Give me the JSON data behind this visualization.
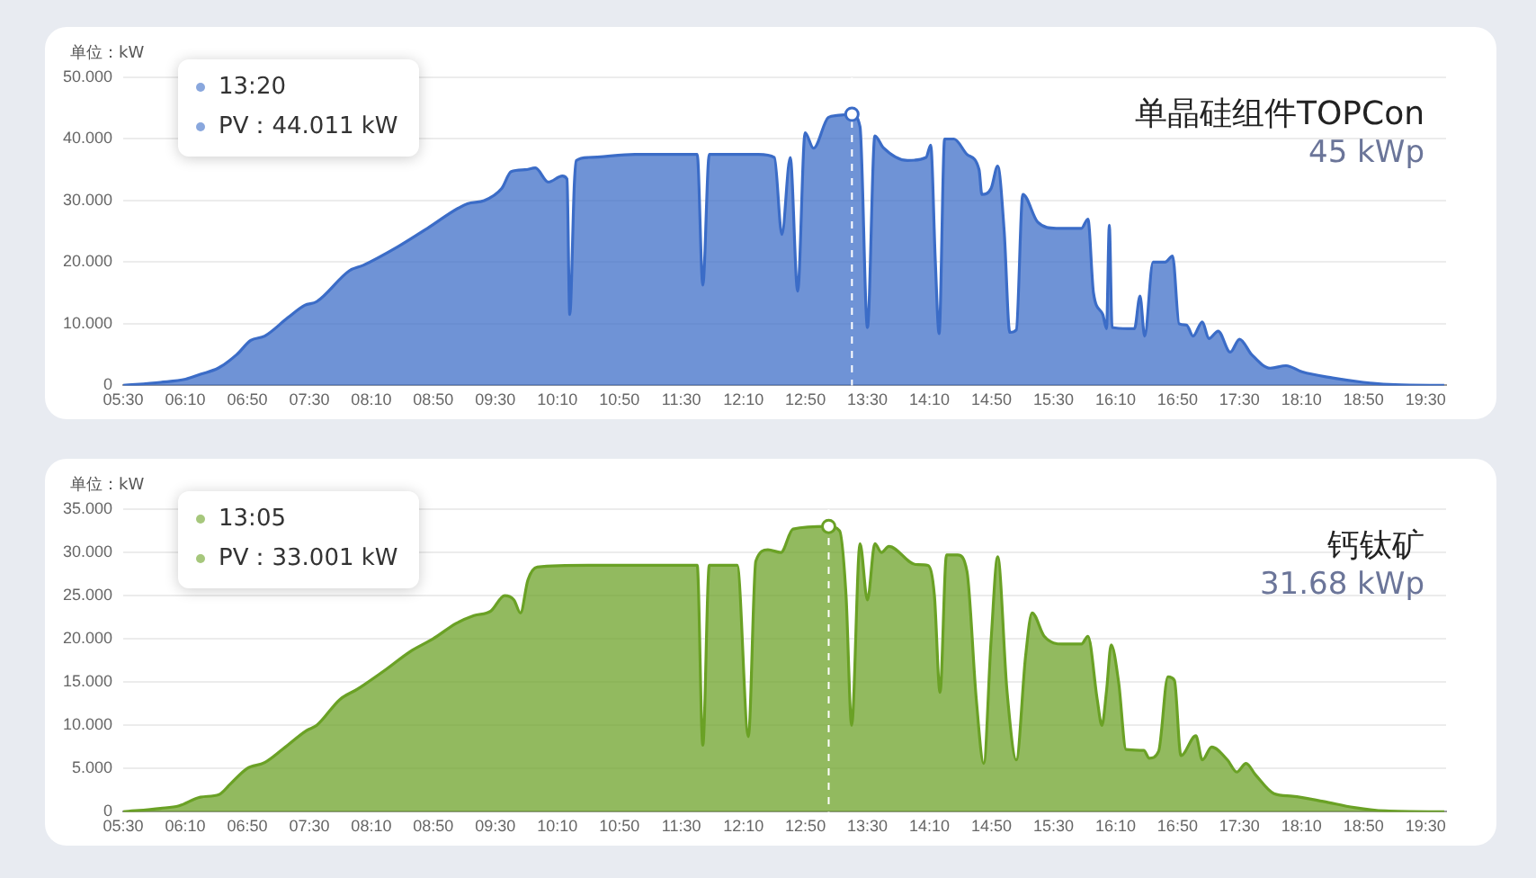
{
  "chart_data": [
    {
      "type": "area",
      "title": "单晶硅组件TOPCon",
      "subtitle": "45 kWp",
      "ylabel": "单位：kW",
      "x": [
        5.5,
        5.9,
        6.17,
        6.33,
        6.52,
        6.72,
        6.87,
        7.02,
        7.27,
        7.45,
        7.58,
        7.93,
        8.08,
        8.45,
        8.77,
        9.2,
        9.38,
        9.57,
        9.67,
        9.82,
        9.93,
        10.07,
        10.22,
        10.27,
        10.3,
        10.35,
        10.37,
        10.5,
        11,
        11.67,
        11.73,
        11.8,
        12.33,
        12.5,
        12.58,
        12.67,
        12.75,
        12.83,
        12.92,
        13.08,
        13.17,
        13.3333,
        13.42,
        13.5,
        13.58,
        13.67,
        13.93,
        14.13,
        14.18,
        14.23,
        14.27,
        14.33,
        14.43,
        14.57,
        14.7,
        14.73,
        14.83,
        14.9,
        14.97,
        15.03,
        15.1,
        15.17,
        15.33,
        15.53,
        15.8,
        15.87,
        15.93,
        16.03,
        16.07,
        16.1,
        16.13,
        16.3,
        16.37,
        16.43,
        16.48,
        16.57,
        16.7,
        16.78,
        16.85,
        16.93,
        17,
        17.1,
        17.17,
        17.27,
        17.4,
        17.5,
        17.63,
        17.83,
        18,
        18.17,
        18.5,
        18.83,
        19.17,
        19.7
      ],
      "series": [
        {
          "color": "#3b6cc7",
          "values": [
            0,
            0.5,
            1,
            1.8,
            2.8,
            5,
            7.3,
            8,
            11,
            13,
            13.6,
            18.6,
            19.5,
            22.5,
            25.5,
            29.5,
            30,
            32,
            34.7,
            35,
            35.3,
            33,
            34,
            33.5,
            11.5,
            33,
            36.5,
            37,
            37.5,
            37.5,
            16.3,
            37.5,
            37.5,
            37,
            24.5,
            37,
            15.3,
            41,
            38.5,
            43.5,
            43.8,
            44.011,
            42,
            9.4,
            40.5,
            38.6,
            36.5,
            37,
            39,
            20,
            8.4,
            40,
            40,
            37.5,
            35,
            31,
            32,
            35.6,
            25,
            8.6,
            9,
            31,
            26.5,
            25.5,
            25.5,
            27,
            15,
            11.5,
            9.2,
            26,
            9.4,
            9.2,
            9.2,
            14.5,
            8,
            20,
            20,
            21,
            10,
            9.8,
            8,
            10.3,
            7.6,
            8.8,
            5.4,
            7.5,
            5,
            2.8,
            3.2,
            2.2,
            1.2,
            0.5,
            0.1,
            0
          ]
        }
      ],
      "xlim": [
        5.5,
        19.72
      ],
      "xticks": [
        {
          "value": 5.5,
          "label": "05:30"
        },
        {
          "value": 6.1667,
          "label": "06:10"
        },
        {
          "value": 6.8333,
          "label": "06:50"
        },
        {
          "value": 7.5,
          "label": "07:30"
        },
        {
          "value": 8.1667,
          "label": "08:10"
        },
        {
          "value": 8.8333,
          "label": "08:50"
        },
        {
          "value": 9.5,
          "label": "09:30"
        },
        {
          "value": 10.1667,
          "label": "10:10"
        },
        {
          "value": 10.8333,
          "label": "10:50"
        },
        {
          "value": 11.5,
          "label": "11:30"
        },
        {
          "value": 12.1667,
          "label": "12:10"
        },
        {
          "value": 12.8333,
          "label": "12:50"
        },
        {
          "value": 13.5,
          "label": "13:30"
        },
        {
          "value": 14.1667,
          "label": "14:10"
        },
        {
          "value": 14.8333,
          "label": "14:50"
        },
        {
          "value": 15.5,
          "label": "15:30"
        },
        {
          "value": 16.1667,
          "label": "16:10"
        },
        {
          "value": 16.8333,
          "label": "16:50"
        },
        {
          "value": 17.5,
          "label": "17:30"
        },
        {
          "value": 18.1667,
          "label": "18:10"
        },
        {
          "value": 18.8333,
          "label": "18:50"
        },
        {
          "value": 19.5,
          "label": "19:30"
        }
      ],
      "ylim": [
        0,
        50
      ],
      "yticks": [
        0,
        {
          "value": 10,
          "label": "10.000"
        },
        {
          "value": 20,
          "label": "20.000"
        },
        {
          "value": 30,
          "label": "30.000"
        },
        {
          "value": 40,
          "label": "40.000"
        },
        {
          "value": 50,
          "label": "50.000"
        }
      ],
      "ref_lines": [
        {
          "axis": "x",
          "value": 13.3333,
          "color": "#ffffff",
          "line_style": "dashed"
        }
      ],
      "annotations": [
        "13:20",
        "PV：44.011 kW"
      ],
      "grid": "y",
      "legend": false,
      "marker": "none",
      "line_style": "solid"
    },
    {
      "type": "area",
      "title": "钙钛矿",
      "subtitle": "31.68 kWp",
      "ylabel": "单位：kW",
      "x": [
        5.5,
        5.9,
        6.1,
        6.33,
        6.53,
        6.65,
        6.83,
        7.02,
        7.22,
        7.47,
        7.58,
        7.83,
        8.02,
        8.33,
        8.58,
        8.83,
        9.08,
        9.27,
        9.45,
        9.6,
        9.7,
        9.77,
        9.85,
        9.95,
        10.5,
        11.5,
        11.67,
        11.73,
        11.8,
        12.1,
        12.22,
        12.3,
        12.43,
        12.57,
        12.7,
        13.0833,
        13.2,
        13.27,
        13.33,
        13.42,
        13.5,
        13.58,
        13.65,
        13.73,
        14.02,
        14.15,
        14.22,
        14.28,
        14.35,
        14.47,
        14.57,
        14.67,
        14.75,
        14.83,
        14.9,
        15,
        15.1,
        15.2,
        15.27,
        15.4,
        15.6,
        15.8,
        15.87,
        15.97,
        16.02,
        16.07,
        16.12,
        16.2,
        16.28,
        16.47,
        16.53,
        16.63,
        16.73,
        16.8,
        16.87,
        17.03,
        17.1,
        17.2,
        17.37,
        17.47,
        17.57,
        17.67,
        17.87,
        18.07,
        18.4,
        18.73,
        19.07,
        19.7
      ],
      "series": [
        {
          "color": "#6aa125",
          "values": [
            0,
            0.4,
            0.7,
            1.7,
            2,
            3.2,
            5,
            5.7,
            7.3,
            9.4,
            10,
            13,
            14.2,
            16.5,
            18.5,
            20,
            21.8,
            22.7,
            23.2,
            25,
            24.5,
            23,
            26.8,
            28.3,
            28.5,
            28.5,
            28.5,
            7.7,
            28.5,
            28.5,
            8.7,
            29,
            30.3,
            30,
            32.7,
            33.001,
            32.5,
            25,
            10,
            31,
            24.5,
            31,
            30,
            30.7,
            28.6,
            28.5,
            25,
            13.8,
            29.7,
            29.7,
            27.8,
            13,
            5.6,
            20,
            29.5,
            14,
            6,
            18,
            23,
            20.3,
            19.4,
            19.4,
            20.3,
            13,
            10,
            14,
            19.3,
            15,
            7.2,
            7.1,
            6.2,
            7,
            15.6,
            15.2,
            6.5,
            8.8,
            6,
            7.5,
            6,
            4.6,
            5.6,
            4.3,
            2.1,
            1.8,
            1.2,
            0.5,
            0.1,
            0
          ]
        }
      ],
      "xlim": [
        5.5,
        19.72
      ],
      "xticks": [
        {
          "value": 5.5,
          "label": "05:30"
        },
        {
          "value": 6.1667,
          "label": "06:10"
        },
        {
          "value": 6.8333,
          "label": "06:50"
        },
        {
          "value": 7.5,
          "label": "07:30"
        },
        {
          "value": 8.1667,
          "label": "08:10"
        },
        {
          "value": 8.8333,
          "label": "08:50"
        },
        {
          "value": 9.5,
          "label": "09:30"
        },
        {
          "value": 10.1667,
          "label": "10:10"
        },
        {
          "value": 10.8333,
          "label": "10:50"
        },
        {
          "value": 11.5,
          "label": "11:30"
        },
        {
          "value": 12.1667,
          "label": "12:10"
        },
        {
          "value": 12.8333,
          "label": "12:50"
        },
        {
          "value": 13.5,
          "label": "13:30"
        },
        {
          "value": 14.1667,
          "label": "14:10"
        },
        {
          "value": 14.8333,
          "label": "14:50"
        },
        {
          "value": 15.5,
          "label": "15:30"
        },
        {
          "value": 16.1667,
          "label": "16:10"
        },
        {
          "value": 16.8333,
          "label": "16:50"
        },
        {
          "value": 17.5,
          "label": "17:30"
        },
        {
          "value": 18.1667,
          "label": "18:10"
        },
        {
          "value": 18.8333,
          "label": "18:50"
        },
        {
          "value": 19.5,
          "label": "19:30"
        }
      ],
      "ylim": [
        0,
        35
      ],
      "yticks": [
        0,
        {
          "value": 5,
          "label": "5.000"
        },
        {
          "value": 10,
          "label": "10.000"
        },
        {
          "value": 15,
          "label": "15.000"
        },
        {
          "value": 20,
          "label": "20.000"
        },
        {
          "value": 25,
          "label": "25.000"
        },
        {
          "value": 30,
          "label": "30.000"
        },
        {
          "value": 35,
          "label": "35.000"
        }
      ],
      "ref_lines": [
        {
          "axis": "x",
          "value": 13.0833,
          "color": "#ffffff",
          "line_style": "dashed"
        }
      ],
      "annotations": [
        "13:05",
        "PV：33.001 kW"
      ],
      "grid": "y",
      "legend": false,
      "marker": "none",
      "line_style": "solid"
    }
  ]
}
